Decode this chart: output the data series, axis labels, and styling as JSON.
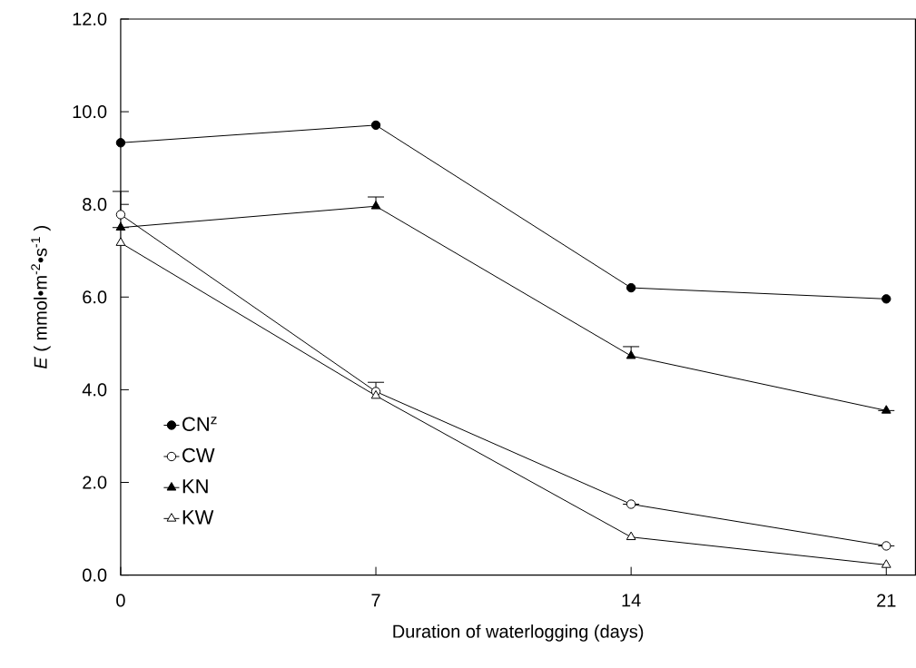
{
  "chart_data": {
    "type": "line",
    "xlabel": "Duration of waterlogging (days)",
    "ylabel": "*E* ( mmol•m$^{-2}$•s$^{-1}$ )",
    "x": [
      0,
      7,
      14,
      21
    ],
    "xlim": [
      0,
      21.8
    ],
    "xticks": [
      0,
      7,
      14,
      21
    ],
    "ylim": [
      0,
      12
    ],
    "yticks": [
      {
        "value": 0,
        "label": "0.0"
      },
      {
        "value": 2,
        "label": "2.0"
      },
      {
        "value": 4,
        "label": "4.0"
      },
      {
        "value": 6,
        "label": "6.0"
      },
      {
        "value": 8,
        "label": "8.0"
      },
      {
        "value": 10,
        "label": "10.0"
      },
      {
        "value": 12,
        "label": "12.0"
      }
    ],
    "grid": false,
    "legend": "bottom left",
    "line_style": "solid",
    "series": [
      {
        "name": "CN$^{z}$",
        "color": "#000000",
        "marker": "circle",
        "values": [
          9.33,
          9.71,
          6.2,
          5.96
        ],
        "errors": [
          null,
          null,
          null,
          null
        ]
      },
      {
        "name": "CW",
        "color": "#ffffff",
        "marker": "circle",
        "values": [
          7.78,
          3.96,
          1.53,
          0.63
        ],
        "errors": [
          0.5,
          0.2,
          null,
          null
        ]
      },
      {
        "name": "KN",
        "color": "#000000",
        "marker": "triangle",
        "values": [
          7.5,
          7.96,
          4.73,
          3.55
        ],
        "errors": [
          null,
          0.2,
          0.2,
          null
        ]
      },
      {
        "name": "KW",
        "color": "#ffffff",
        "marker": "triangle",
        "values": [
          7.17,
          3.87,
          0.82,
          0.22
        ],
        "errors": [
          null,
          null,
          null,
          null
        ]
      }
    ]
  }
}
